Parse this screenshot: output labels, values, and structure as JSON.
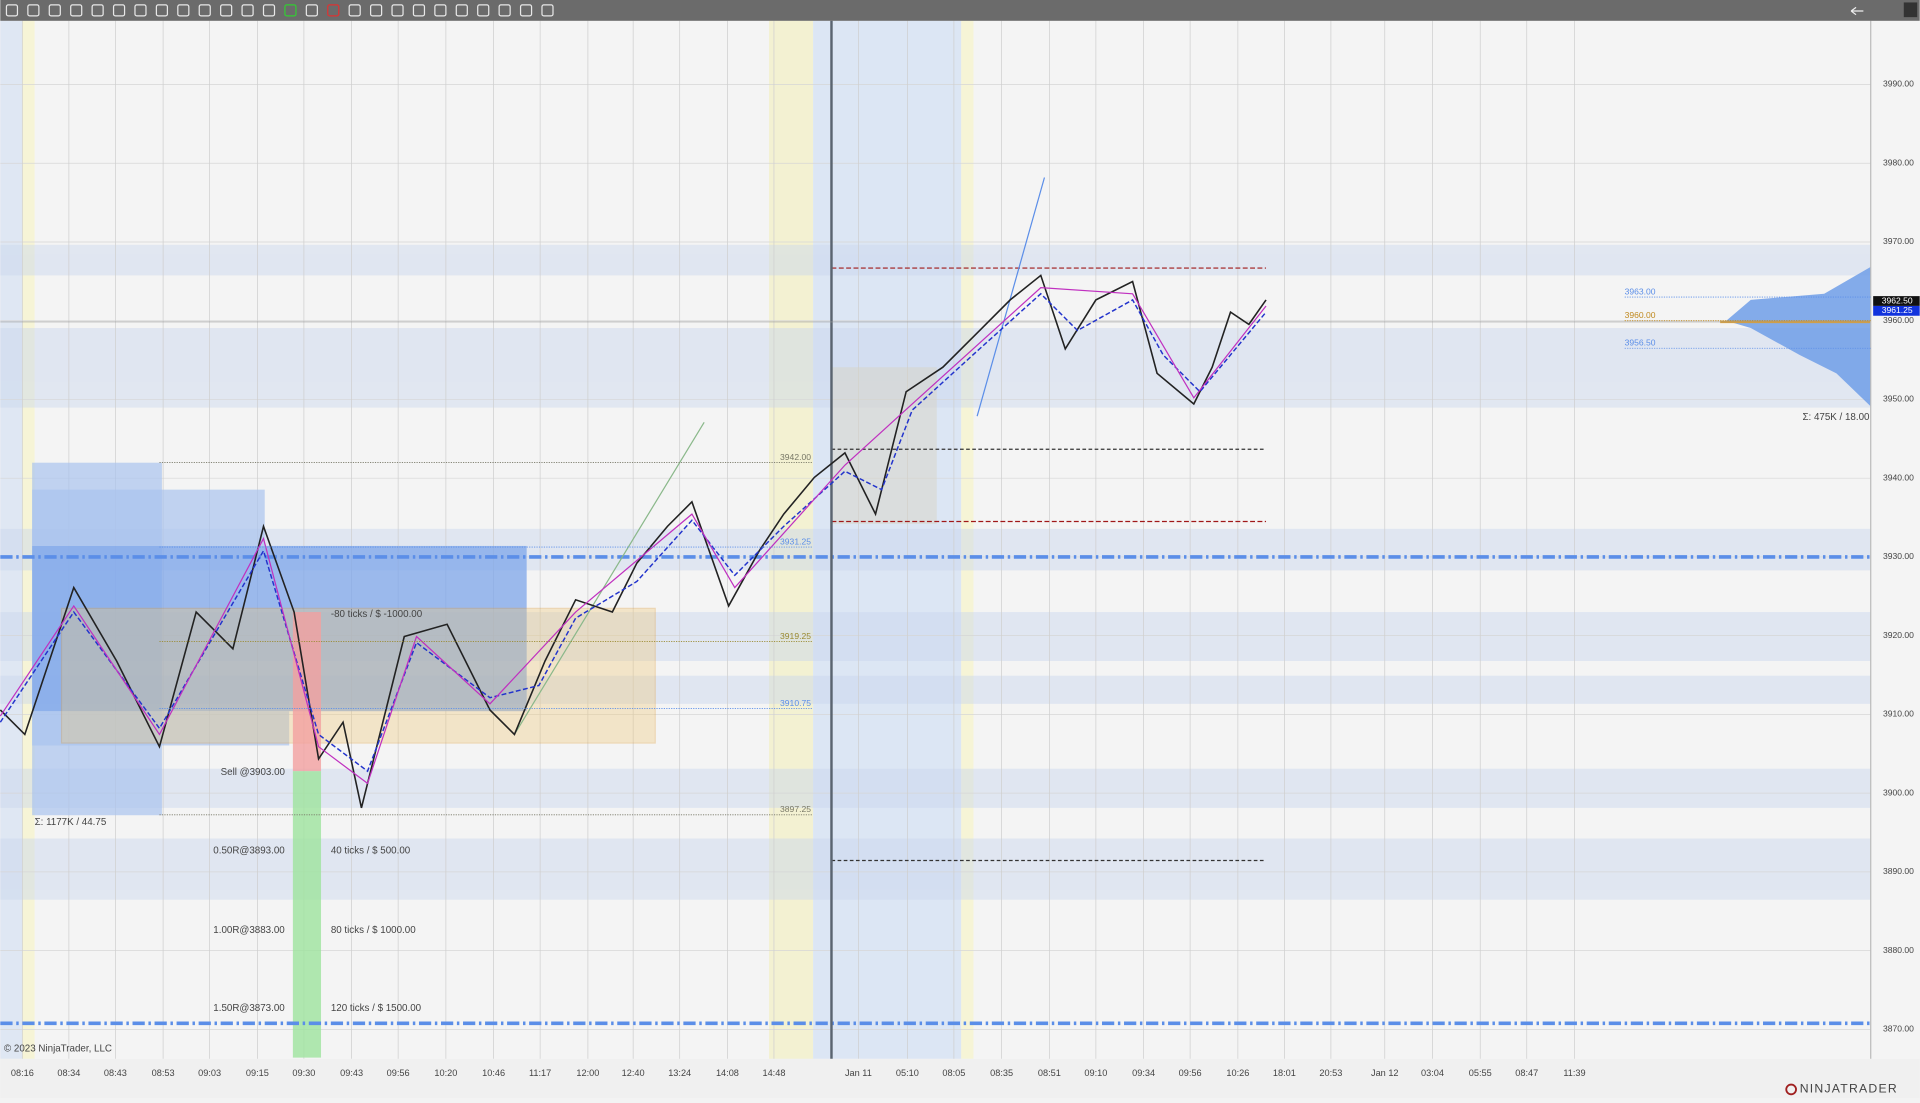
{
  "price_axis": {
    "ticks": [
      {
        "value": 3990,
        "label": "3990.00"
      },
      {
        "value": 3980,
        "label": "3980.00"
      },
      {
        "value": 3970,
        "label": "3970.00"
      },
      {
        "value": 3960,
        "label": "3960.00"
      },
      {
        "value": 3950,
        "label": "3950.00"
      },
      {
        "value": 3940,
        "label": "3940.00"
      },
      {
        "value": 3930,
        "label": "3930.00"
      },
      {
        "value": 3920,
        "label": "3920.00"
      },
      {
        "value": 3910,
        "label": "3910.00"
      },
      {
        "value": 3900,
        "label": "3900.00"
      },
      {
        "value": 3890,
        "label": "3890.00"
      },
      {
        "value": 3880,
        "label": "3880.00"
      },
      {
        "value": 3870,
        "label": "3870.00"
      }
    ],
    "current": [
      {
        "value": 3962.5,
        "label": "3962.50"
      },
      {
        "value": 3961.25,
        "label": "3961.25"
      }
    ]
  },
  "time_axis": {
    "labels": [
      "08:16",
      "08:34",
      "08:43",
      "08:53",
      "09:03",
      "09:15",
      "09:30",
      "09:43",
      "09:56",
      "10:20",
      "10:46",
      "11:17",
      "12:00",
      "12:40",
      "13:24",
      "14:08",
      "14:48",
      "Jan 11",
      "05:10",
      "08:05",
      "08:35",
      "08:51",
      "09:10",
      "09:34",
      "09:56",
      "10:26",
      "18:01",
      "20:53",
      "Jan 12",
      "03:04",
      "05:55",
      "08:47",
      "11:39"
    ]
  },
  "levels": [
    {
      "value": 3942,
      "label": "3942.00"
    },
    {
      "value": 3931.25,
      "label": "3931.25"
    },
    {
      "value": 3919.25,
      "label": "3919.25"
    },
    {
      "value": 3910.75,
      "label": "3910.75"
    },
    {
      "value": 3897.25,
      "label": "3897.25"
    },
    {
      "value": 3963,
      "label": "3963.00"
    },
    {
      "value": 3960,
      "label": "3960.00"
    },
    {
      "value": 3956.5,
      "label": "3956.50"
    }
  ],
  "trade": {
    "entry": "Sell @3903.00",
    "targets": [
      "0.50R@3893.00",
      "1.00R@3883.00",
      "1.50R@3873.00"
    ],
    "target_ticks": [
      "40 ticks / $ 500.00",
      "80 ticks / $ 1000.00",
      "120 ticks / $ 1500.00"
    ],
    "stop_ticks": "-80 ticks / $ -1000.00"
  },
  "profiles": {
    "left": "Σ: 1177K / 44.75",
    "right": "Σ: 475K / 18.00"
  },
  "footer": {
    "copyright": "© 2023 NinjaTrader, LLC",
    "brand": "NINJATRADER"
  }
}
